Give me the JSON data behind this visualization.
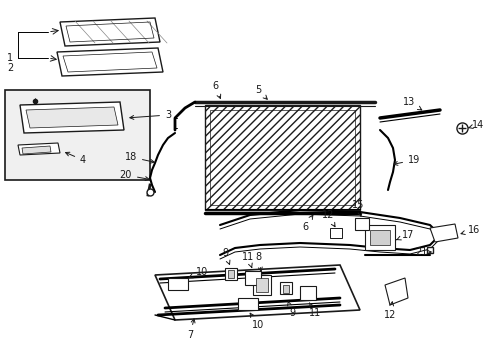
{
  "background_color": "#ffffff",
  "fig_width": 4.89,
  "fig_height": 3.6,
  "dpi": 100,
  "line_color": "#1a1a1a",
  "text_color": "#1a1a1a",
  "label_fontsize": 7.0
}
